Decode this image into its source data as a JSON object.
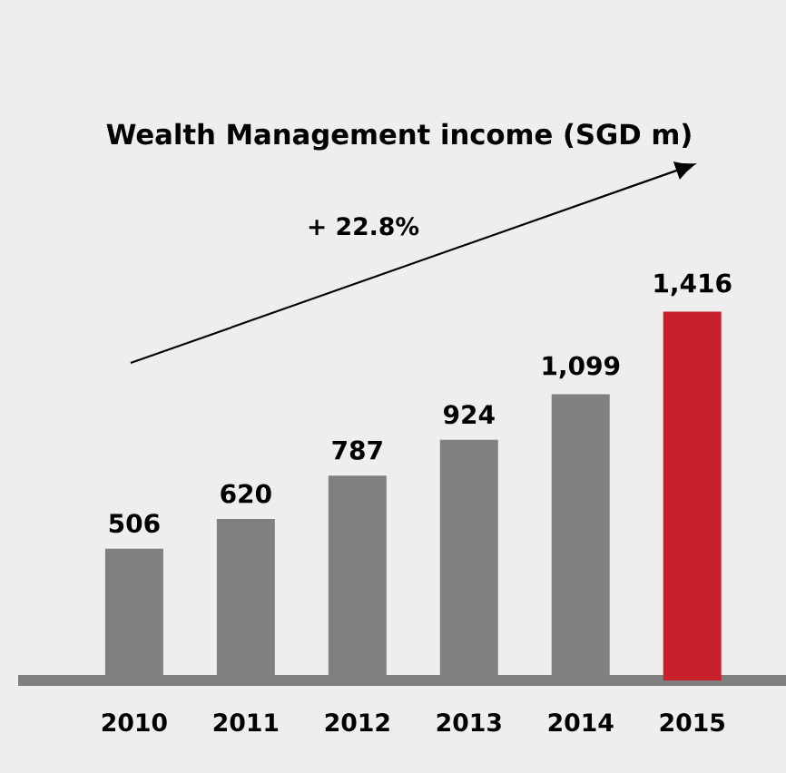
{
  "chart_data": {
    "type": "bar",
    "title": "Wealth Management income (SGD m)",
    "categories": [
      "2010",
      "2011",
      "2012",
      "2013",
      "2014",
      "2015"
    ],
    "values": [
      506,
      620,
      787,
      924,
      1099,
      1416
    ],
    "colors": [
      "#808080",
      "#808080",
      "#808080",
      "#808080",
      "#808080",
      "#c8202a"
    ],
    "value_labels": [
      "506",
      "620",
      "787",
      "924",
      "1,099",
      "1,416"
    ],
    "ylim": [
      0,
      1416
    ],
    "tick_labels": "x",
    "annotations": [
      "+ 22.8%"
    ]
  }
}
